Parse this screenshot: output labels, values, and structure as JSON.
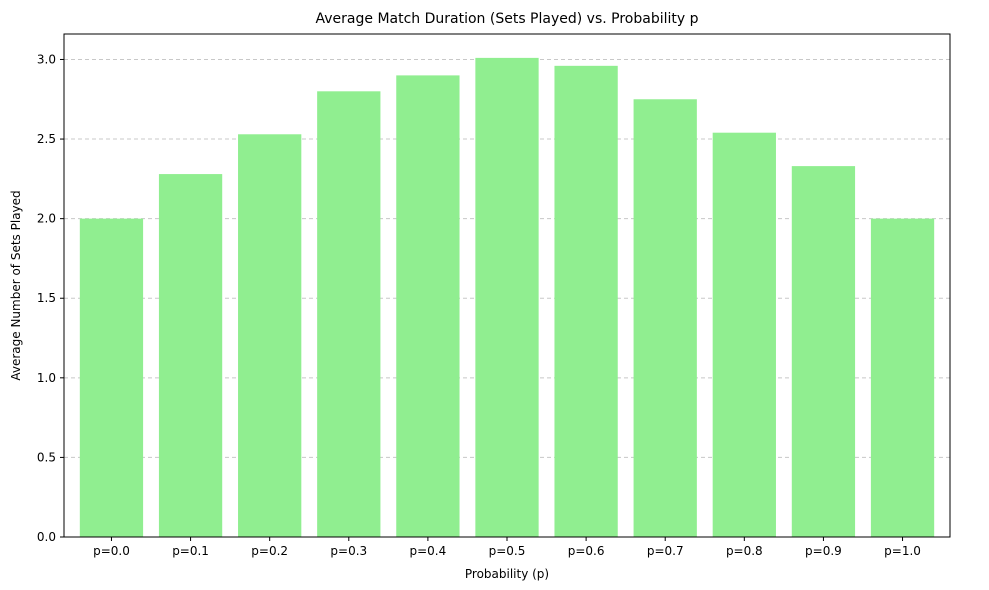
{
  "chart_data": {
    "type": "bar",
    "title": "Average Match Duration (Sets Played) vs. Probability p",
    "xlabel": "Probability (p)",
    "ylabel": "Average Number of Sets Played",
    "categories": [
      "p=0.0",
      "p=0.1",
      "p=0.2",
      "p=0.3",
      "p=0.4",
      "p=0.5",
      "p=0.6",
      "p=0.7",
      "p=0.8",
      "p=0.9",
      "p=1.0"
    ],
    "values": [
      2.0,
      2.28,
      2.53,
      2.8,
      2.9,
      3.01,
      2.96,
      2.75,
      2.54,
      2.33,
      2.0
    ],
    "ylim": [
      0,
      3.16
    ],
    "yticks": [
      "0.0",
      "0.5",
      "1.0",
      "1.5",
      "2.0",
      "2.5",
      "3.0"
    ],
    "grid": "y-dashed",
    "bar_color": "#90ee90"
  }
}
